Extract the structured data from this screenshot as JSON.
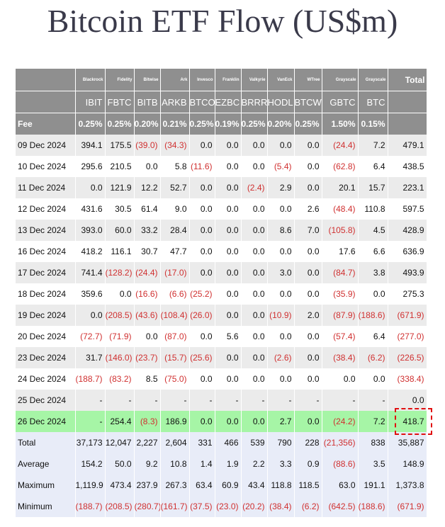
{
  "title": "Bitcoin ETF Flow (US$m)",
  "issuers": [
    "Blackrock",
    "Fidelity",
    "Bitwise",
    "Ark",
    "Invesco",
    "Franklin",
    "Valkyrie",
    "VanEck",
    "WTree",
    "Grayscale",
    "Grayscale"
  ],
  "total_header": "Total",
  "tickers": [
    "IBIT",
    "FBTC",
    "BITB",
    "ARKB",
    "BTCO",
    "EZBC",
    "BRRR",
    "HODL",
    "BTCW",
    "GBTC",
    "BTC"
  ],
  "fee_label": "Fee",
  "fees": [
    "0.25%",
    "0.25%",
    "0.20%",
    "0.21%",
    "0.25%",
    "0.19%",
    "0.25%",
    "0.20%",
    "0.25%",
    "1.50%",
    "0.15%"
  ],
  "rows": [
    {
      "date": "09 Dec 2024",
      "values": [
        "394.1",
        "175.5",
        "(39.0)",
        "(34.3)",
        "0.0",
        "0.0",
        "0.0",
        "0.0",
        "0.0",
        "(24.4)",
        "7.2"
      ],
      "total": "479.1"
    },
    {
      "date": "10 Dec 2024",
      "values": [
        "295.6",
        "210.5",
        "0.0",
        "5.8",
        "(11.6)",
        "0.0",
        "0.0",
        "(5.4)",
        "0.0",
        "(62.8)",
        "6.4"
      ],
      "total": "438.5"
    },
    {
      "date": "11 Dec 2024",
      "values": [
        "0.0",
        "121.9",
        "12.2",
        "52.7",
        "0.0",
        "0.0",
        "(2.4)",
        "2.9",
        "0.0",
        "20.1",
        "15.7"
      ],
      "total": "223.1"
    },
    {
      "date": "12 Dec 2024",
      "values": [
        "431.6",
        "30.5",
        "61.4",
        "9.0",
        "0.0",
        "0.0",
        "0.0",
        "0.0",
        "2.6",
        "(48.4)",
        "110.8"
      ],
      "total": "597.5"
    },
    {
      "date": "13 Dec 2024",
      "values": [
        "393.0",
        "60.0",
        "33.2",
        "28.4",
        "0.0",
        "0.0",
        "0.0",
        "8.6",
        "7.0",
        "(105.8)",
        "4.5"
      ],
      "total": "428.9"
    },
    {
      "date": "16 Dec 2024",
      "values": [
        "418.2",
        "116.1",
        "30.7",
        "47.7",
        "0.0",
        "0.0",
        "0.0",
        "0.0",
        "0.0",
        "17.6",
        "6.6"
      ],
      "total": "636.9"
    },
    {
      "date": "17 Dec 2024",
      "values": [
        "741.4",
        "(128.2)",
        "(24.4)",
        "(17.0)",
        "0.0",
        "0.0",
        "0.0",
        "3.0",
        "0.0",
        "(84.7)",
        "3.8"
      ],
      "total": "493.9"
    },
    {
      "date": "18 Dec 2024",
      "values": [
        "359.6",
        "0.0",
        "(16.6)",
        "(6.6)",
        "(25.2)",
        "0.0",
        "0.0",
        "0.0",
        "0.0",
        "(35.9)",
        "0.0"
      ],
      "total": "275.3"
    },
    {
      "date": "19 Dec 2024",
      "values": [
        "0.0",
        "(208.5)",
        "(43.6)",
        "(108.4)",
        "(26.0)",
        "0.0",
        "0.0",
        "(10.9)",
        "2.0",
        "(87.9)",
        "(188.6)"
      ],
      "total": "(671.9)"
    },
    {
      "date": "20 Dec 2024",
      "values": [
        "(72.7)",
        "(71.9)",
        "0.0",
        "(87.0)",
        "0.0",
        "5.6",
        "0.0",
        "0.0",
        "0.0",
        "(57.4)",
        "6.4"
      ],
      "total": "(277.0)"
    },
    {
      "date": "23 Dec 2024",
      "values": [
        "31.7",
        "(146.0)",
        "(23.7)",
        "(15.7)",
        "(25.6)",
        "0.0",
        "0.0",
        "(2.6)",
        "0.0",
        "(38.4)",
        "(6.2)"
      ],
      "total": "(226.5)"
    },
    {
      "date": "24 Dec 2024",
      "values": [
        "(188.7)",
        "(83.2)",
        "8.5",
        "(75.0)",
        "0.0",
        "0.0",
        "0.0",
        "0.0",
        "0.0",
        "0.0",
        "0.0"
      ],
      "total": "(338.4)"
    },
    {
      "date": "25 Dec 2024",
      "values": [
        "-",
        "-",
        "-",
        "-",
        "-",
        "-",
        "-",
        "-",
        "-",
        "-",
        "-"
      ],
      "total": "0.0"
    },
    {
      "date": "26 Dec 2024",
      "values": [
        "-",
        "254.4",
        "(8.3)",
        "186.9",
        "0.0",
        "0.0",
        "0.0",
        "2.7",
        "0.0",
        "(24.2)",
        "7.2"
      ],
      "total": "418.7",
      "highlight": true
    }
  ],
  "summary": [
    {
      "label": "Total",
      "values": [
        "37,173",
        "12,047",
        "2,227",
        "2,604",
        "331",
        "466",
        "539",
        "790",
        "228",
        "(21,356)",
        "838"
      ],
      "total": "35,887"
    },
    {
      "label": "Average",
      "values": [
        "154.2",
        "50.0",
        "9.2",
        "10.8",
        "1.4",
        "1.9",
        "2.2",
        "3.3",
        "0.9",
        "(88.6)",
        "3.5"
      ],
      "total": "148.9"
    },
    {
      "label": "Maximum",
      "values": [
        "1,119.9",
        "473.4",
        "237.9",
        "267.3",
        "63.4",
        "60.9",
        "43.4",
        "118.8",
        "118.5",
        "63.0",
        "191.1"
      ],
      "total": "1,373.8"
    },
    {
      "label": "Minimum",
      "values": [
        "(188.7)",
        "(208.5)",
        "(280.7)",
        "(161.7)",
        "(37.5)",
        "(23.0)",
        "(20.2)",
        "(38.4)",
        "(6.2)",
        "(642.5)",
        "(188.6)"
      ],
      "total": "(671.9)"
    }
  ],
  "colors": {
    "header_bg": "#8f8f8f",
    "negative": "#d03030",
    "highlight_row": "#a6f5a6",
    "highlight_box": "#e01010",
    "summary_bg": "#e8ecf8"
  }
}
